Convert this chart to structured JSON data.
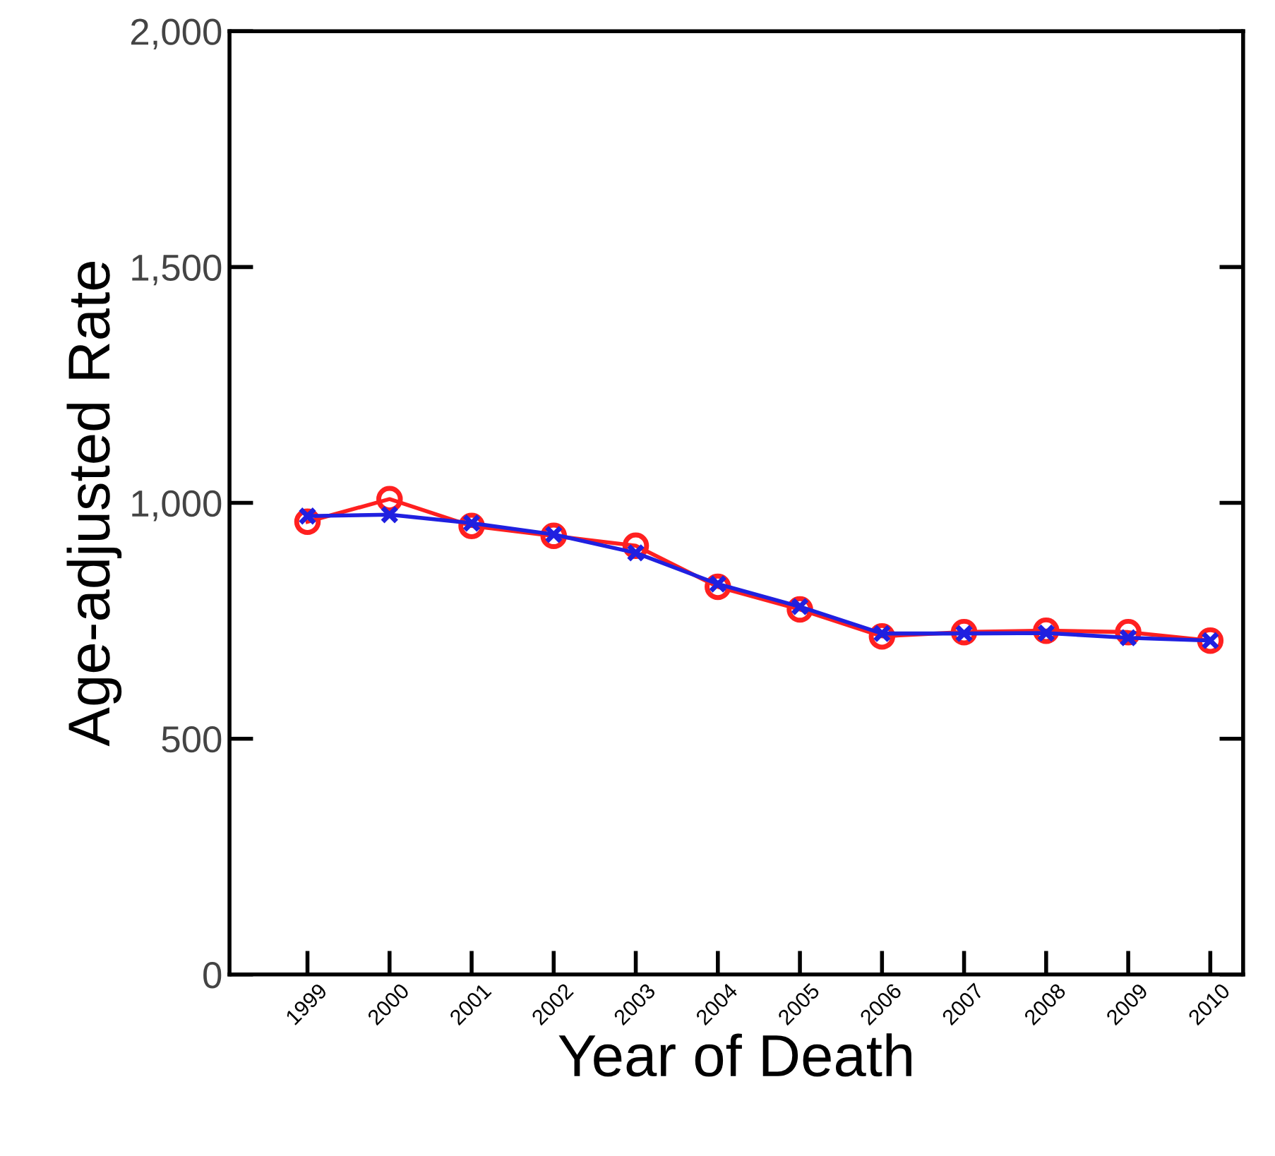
{
  "chart_data": {
    "type": "line",
    "xlabel": "Year of Death",
    "ylabel": "Age-adjusted Rate",
    "categories": [
      "1999",
      "2000",
      "2001",
      "2002",
      "2003",
      "2004",
      "2005",
      "2006",
      "2007",
      "2008",
      "2009",
      "2010"
    ],
    "series": [
      {
        "color": "#ff2020",
        "marker": "circle",
        "values": [
          960,
          1008,
          951,
          930,
          909,
          822,
          774,
          717,
          726,
          729,
          726,
          708
        ]
      },
      {
        "color": "#2020e0",
        "marker": "cross",
        "values": [
          972,
          975,
          957,
          933,
          894,
          828,
          780,
          723,
          723,
          724,
          714,
          708
        ]
      }
    ],
    "ylim": [
      0,
      2000
    ],
    "yticks": [
      {
        "value": 0,
        "label": "0"
      },
      {
        "value": 500,
        "label": "500"
      },
      {
        "value": 1000,
        "label": "1,000"
      },
      {
        "value": 1500,
        "label": "1,500"
      },
      {
        "value": 2000,
        "label": "2,000"
      }
    ],
    "grid": false,
    "legend": false,
    "line_style": "solid"
  }
}
